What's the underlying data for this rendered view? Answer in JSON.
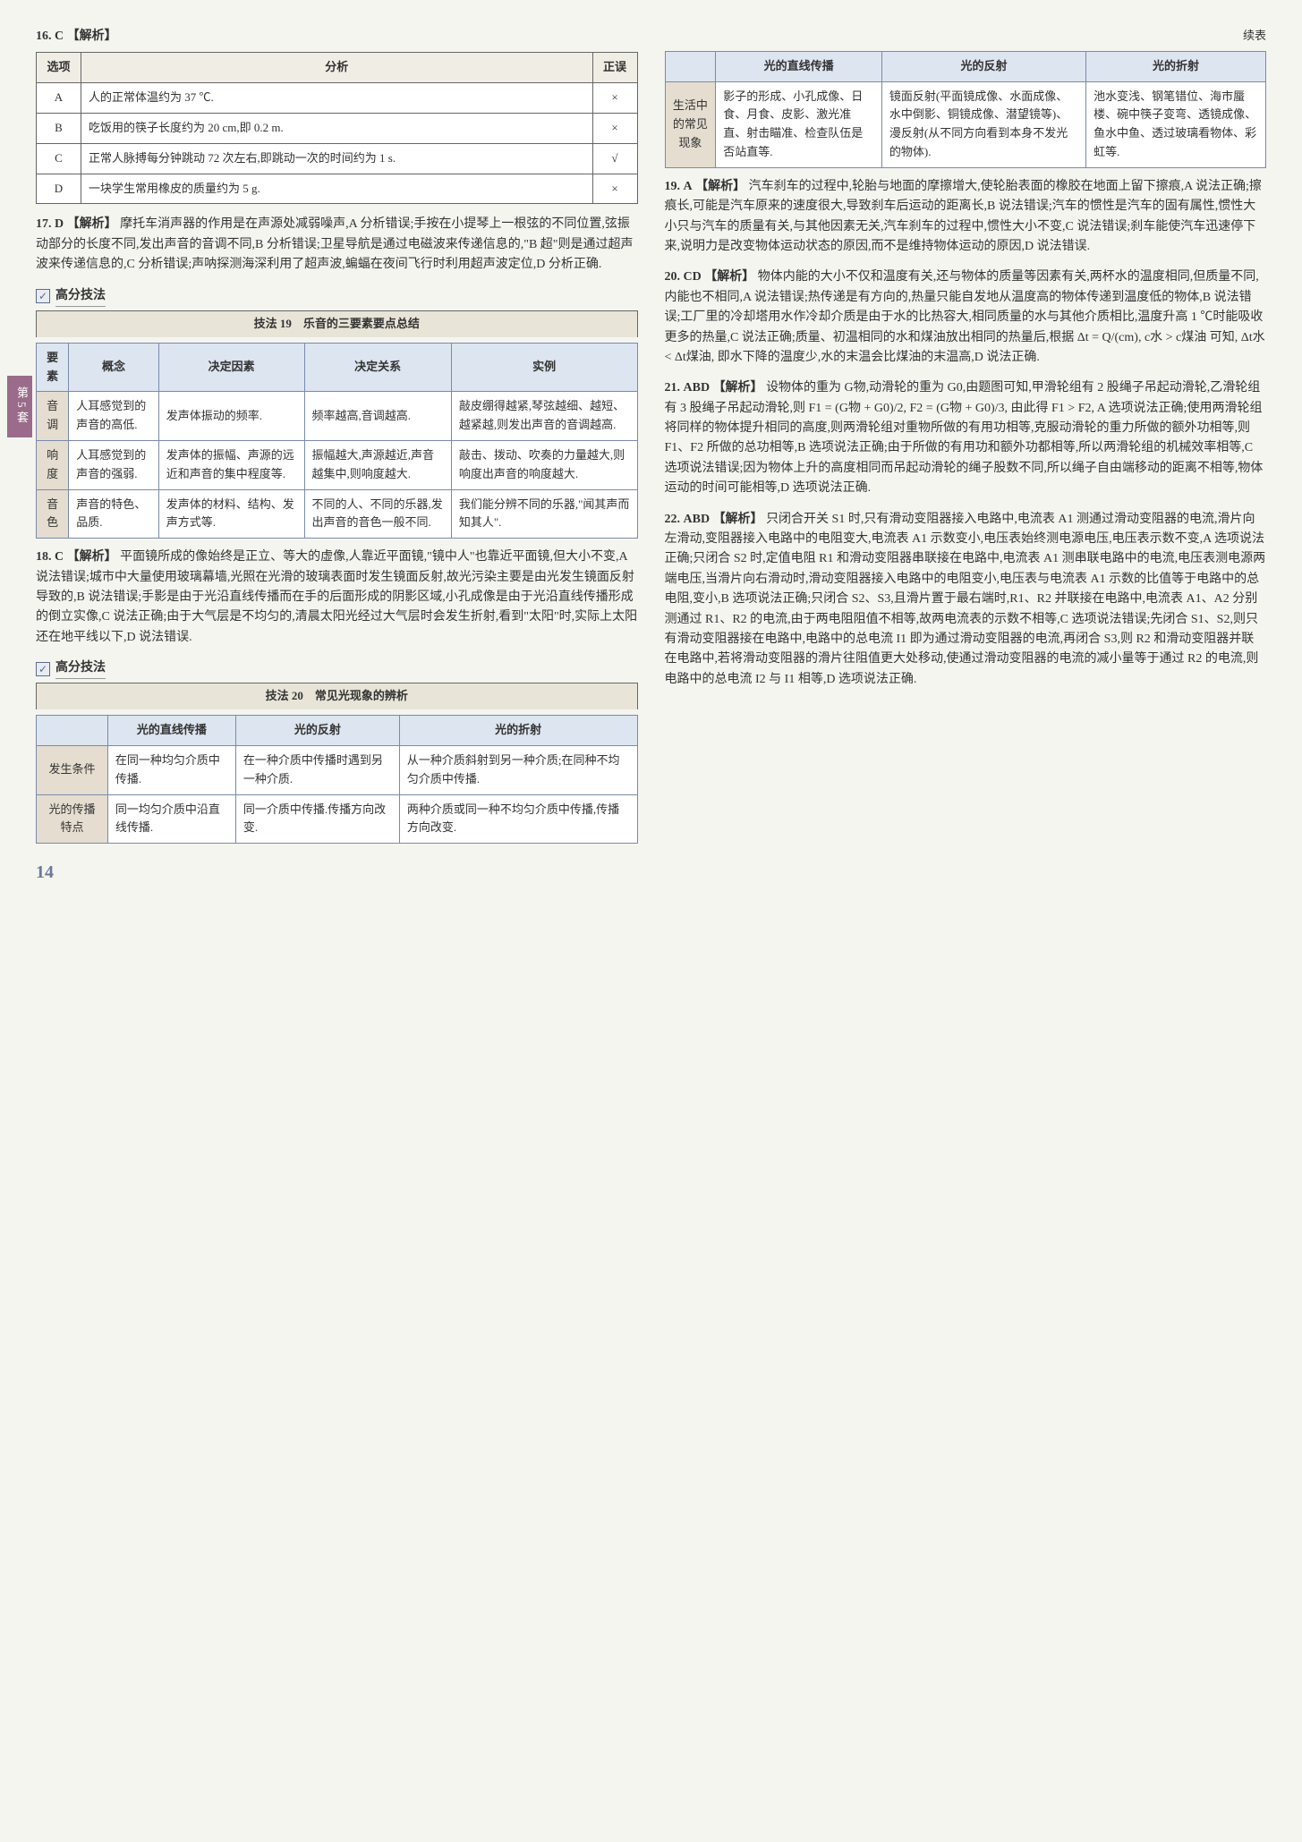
{
  "side_tab": "第5套",
  "page_number": "14",
  "q16": {
    "num": "16.",
    "ans": "C",
    "label": "【解析】",
    "headers": [
      "选项",
      "分析",
      "正误"
    ],
    "rows": [
      {
        "opt": "A",
        "txt": "人的正常体温约为 37 ℃.",
        "mark": "×"
      },
      {
        "opt": "B",
        "txt": "吃饭用的筷子长度约为 20 cm,即 0.2 m.",
        "mark": "×"
      },
      {
        "opt": "C",
        "txt": "正常人脉搏每分钟跳动 72 次左右,即跳动一次的时间约为 1 s.",
        "mark": "√"
      },
      {
        "opt": "D",
        "txt": "一块学生常用橡皮的质量约为 5 g.",
        "mark": "×"
      }
    ]
  },
  "q17": {
    "num": "17.",
    "ans": "D",
    "label": "【解析】",
    "text": "摩托车消声器的作用是在声源处减弱噪声,A 分析错误;手按在小提琴上一根弦的不同位置,弦振动部分的长度不同,发出声音的音调不同,B 分析错误;卫星导航是通过电磁波来传递信息的,\"B 超\"则是通过超声波来传递信息的,C 分析错误;声呐探测海深利用了超声波,蝙蝠在夜间飞行时利用超声波定位,D 分析正确."
  },
  "technique19": {
    "box_label": "高分技法",
    "title": "技法 19　乐音的三要素要点总结",
    "headers": [
      "要素",
      "概念",
      "决定因素",
      "决定关系",
      "实例"
    ],
    "rows": [
      {
        "r0": "音调",
        "r1": "人耳感觉到的声音的高低.",
        "r2": "发声体振动的频率.",
        "r3": "频率越高,音调越高.",
        "r4": "敲皮绷得越紧,琴弦越细、越短、越紧越,则发出声音的音调越高."
      },
      {
        "r0": "响度",
        "r1": "人耳感觉到的声音的强弱.",
        "r2": "发声体的振幅、声源的远近和声音的集中程度等.",
        "r3": "振幅越大,声源越近,声音越集中,则响度越大.",
        "r4": "敲击、拨动、吹奏的力量越大,则响度出声音的响度越大."
      },
      {
        "r0": "音色",
        "r1": "声音的特色、品质.",
        "r2": "发声体的材料、结构、发声方式等.",
        "r3": "不同的人、不同的乐器,发出声音的音色一般不同.",
        "r4": "我们能分辨不同的乐器,\"闻其声而知其人\"."
      }
    ]
  },
  "q18": {
    "num": "18.",
    "ans": "C",
    "label": "【解析】",
    "text": "平面镜所成的像始终是正立、等大的虚像,人靠近平面镜,\"镜中人\"也靠近平面镜,但大小不变,A 说法错误;城市中大量使用玻璃幕墙,光照在光滑的玻璃表面时发生镜面反射,故光污染主要是由光发生镜面反射导致的,B 说法错误;手影是由于光沿直线传播而在手的后面形成的阴影区域,小孔成像是由于光沿直线传播形成的倒立实像,C 说法正确;由于大气层是不均匀的,清晨太阳光经过大气层时会发生折射,看到\"太阳\"时,实际上太阳还在地平线以下,D 说法错误."
  },
  "technique20": {
    "box_label": "高分技法",
    "title": "技法 20　常见光现象的辨析",
    "headers": [
      "",
      "光的直线传播",
      "光的反射",
      "光的折射"
    ],
    "rows": [
      {
        "r0": "发生条件",
        "r1": "在同一种均匀介质中传播.",
        "r2": "在一种介质中传播时遇到另一种介质.",
        "r3": "从一种介质斜射到另一种介质;在同种不均匀介质中传播."
      },
      {
        "r0": "光的传播特点",
        "r1": "同一均匀介质中沿直线传播.",
        "r2": "同一介质中传播.传播方向改变.",
        "r3": "两种介质或同一种不均匀介质中传播,传播方向改变."
      }
    ],
    "continued_label": "续表",
    "rows2": [
      {
        "r0": "生活中的常见现象",
        "r1": "影子的形成、小孔成像、日食、月食、皮影、激光准直、射击瞄准、检查队伍是否站直等.",
        "r2": "镜面反射(平面镜成像、水面成像、水中倒影、铜镜成像、潜望镜等)、漫反射(从不同方向看到本身不发光的物体).",
        "r3": "池水变浅、钢笔错位、海市蜃楼、碗中筷子变弯、透镜成像、鱼水中鱼、透过玻璃看物体、彩虹等."
      }
    ]
  },
  "q19": {
    "num": "19.",
    "ans": "A",
    "label": "【解析】",
    "text": "汽车刹车的过程中,轮胎与地面的摩擦增大,使轮胎表面的橡胶在地面上留下擦痕,A 说法正确;擦痕长,可能是汽车原来的速度很大,导致刹车后运动的距离长,B 说法错误;汽车的惯性是汽车的固有属性,惯性大小只与汽车的质量有关,与其他因素无关,汽车刹车的过程中,惯性大小不变,C 说法错误;刹车能使汽车迅速停下来,说明力是改变物体运动状态的原因,而不是维持物体运动的原因,D 说法错误."
  },
  "q20": {
    "num": "20.",
    "ans": "CD",
    "label": "【解析】",
    "text": "物体内能的大小不仅和温度有关,还与物体的质量等因素有关,两杯水的温度相同,但质量不同,内能也不相同,A 说法错误;热传递是有方向的,热量只能自发地从温度高的物体传递到温度低的物体,B 说法错误;工厂里的冷却塔用水作冷却介质是由于水的比热容大,相同质量的水与其他介质相比,温度升高 1 ℃时能吸收更多的热量,C 说法正确;质量、初温相同的水和煤油放出相同的热量后,根据 Δt = Q/(cm), c水 > c煤油 可知, Δt水 < Δt煤油, 即水下降的温度少,水的末温会比煤油的末温高,D 说法正确."
  },
  "q21": {
    "num": "21.",
    "ans": "ABD",
    "label": "【解析】",
    "text": "设物体的重为 G物,动滑轮的重为 G0,由题图可知,甲滑轮组有 2 股绳子吊起动滑轮,乙滑轮组有 3 股绳子吊起动滑轮,则 F1 = (G物 + G0)/2, F2 = (G物 + G0)/3, 由此得 F1 > F2, A 选项说法正确;使用两滑轮组将同样的物体提升相同的高度,则两滑轮组对重物所做的有用功相等,克服动滑轮的重力所做的额外功相等,则 F1、F2 所做的总功相等,B 选项说法正确;由于所做的有用功和额外功都相等,所以两滑轮组的机械效率相等,C 选项说法错误;因为物体上升的高度相同而吊起动滑轮的绳子股数不同,所以绳子自由端移动的距离不相等,物体运动的时间可能相等,D 选项说法正确."
  },
  "q22": {
    "num": "22.",
    "ans": "ABD",
    "label": "【解析】",
    "text": "只闭合开关 S1 时,只有滑动变阻器接入电路中,电流表 A1 测通过滑动变阻器的电流,滑片向左滑动,变阻器接入电路中的电阻变大,电流表 A1 示数变小,电压表始终测电源电压,电压表示数不变,A 选项说法正确;只闭合 S2 时,定值电阻 R1 和滑动变阻器串联接在电路中,电流表 A1 测串联电路中的电流,电压表测电源两端电压,当滑片向右滑动时,滑动变阻器接入电路中的电阻变小,电压表与电流表 A1 示数的比值等于电路中的总电阻,变小,B 选项说法正确;只闭合 S2、S3,且滑片置于最右端时,R1、R2 并联接在电路中,电流表 A1、A2 分别测通过 R1、R2 的电流,由于两电阻阻值不相等,故两电流表的示数不相等,C 选项说法错误;先闭合 S1、S2,则只有滑动变阻器接在电路中,电路中的总电流 I1 即为通过滑动变阻器的电流,再闭合 S3,则 R2 和滑动变阻器并联在电路中,若将滑动变阻器的滑片往阻值更大处移动,使通过滑动变阻器的电流的减小量等于通过 R2 的电流,则电路中的总电流 I2 与 I1 相等,D 选项说法正确."
  }
}
